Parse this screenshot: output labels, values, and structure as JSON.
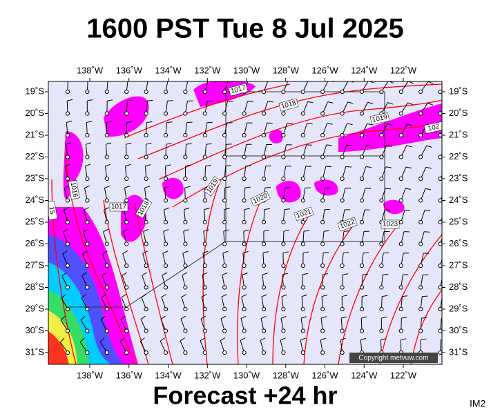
{
  "header": {
    "title": "1600 PST Tue 8 Jul 2025"
  },
  "footer": {
    "subtitle": "Forecast +24 hr",
    "code": "IM2"
  },
  "map": {
    "copyright": "Copyright metvuw.com",
    "longitudes": [
      "138˚W",
      "136˚W",
      "134˚W",
      "132˚W",
      "130˚W",
      "128˚W",
      "126˚W",
      "124˚W",
      "122˚W"
    ],
    "latitudes": [
      "19˚S",
      "20˚S",
      "21˚S",
      "22˚S",
      "23˚S",
      "24˚S",
      "25˚S",
      "26˚S",
      "27˚S",
      "28˚S",
      "29˚S",
      "30˚S",
      "31˚S"
    ],
    "isobar_labels": [
      "1017",
      "1018",
      "1019",
      "102",
      "1016",
      "1017",
      "1018",
      "1019",
      "1020",
      "1021",
      "1022",
      "1023",
      "15"
    ]
  }
}
